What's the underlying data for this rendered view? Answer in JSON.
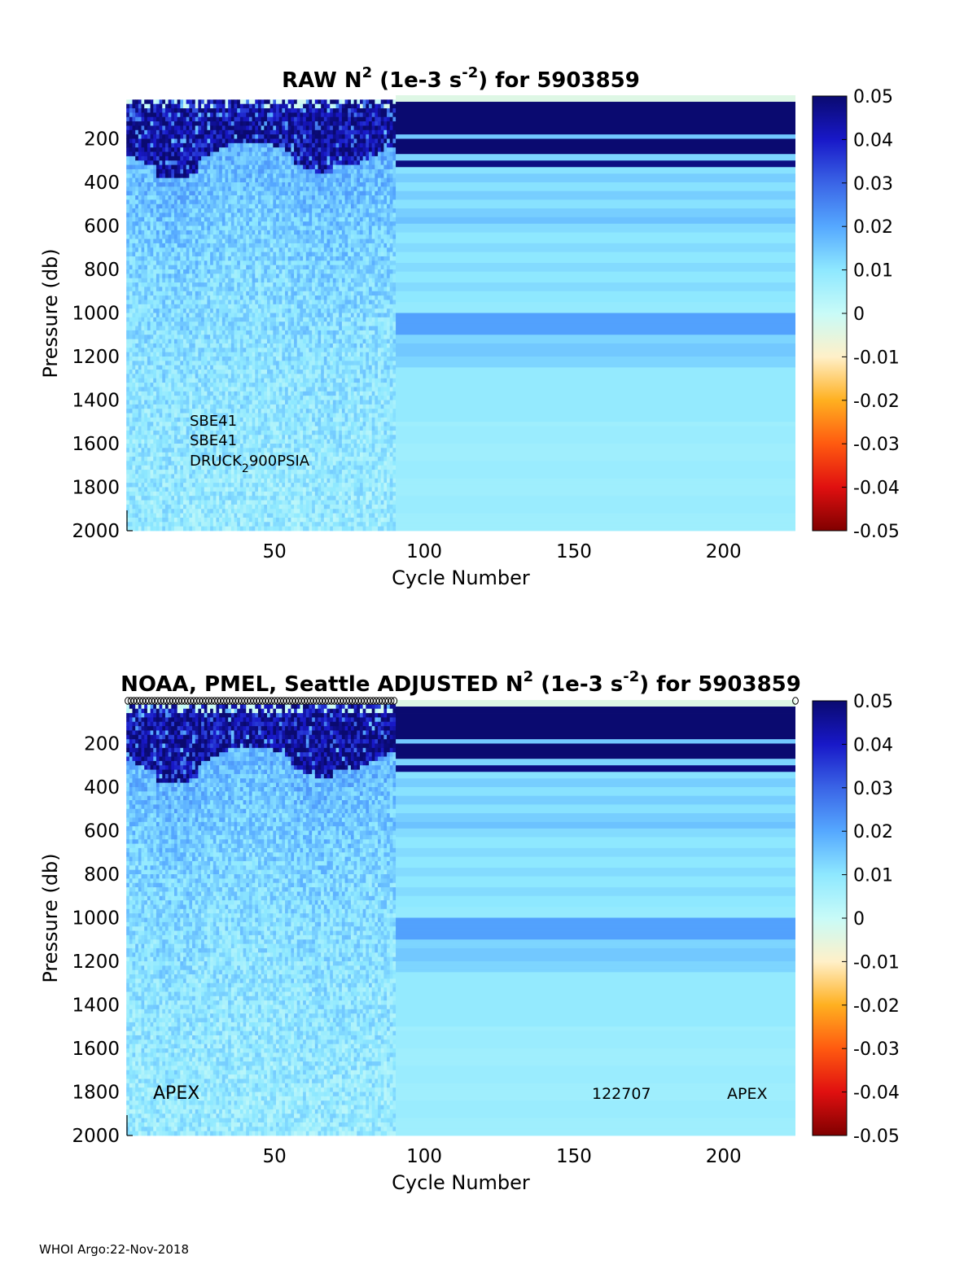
{
  "footer": "WHOI Argo:22-Nov-2018",
  "colorbar": {
    "ticks": [
      "0.05",
      "0.04",
      "0.03",
      "0.02",
      "0.01",
      "0",
      "-0.01",
      "-0.02",
      "-0.03",
      "-0.04",
      "-0.05"
    ],
    "stops": [
      "#0a0a70",
      "#1818c8",
      "#3a64e6",
      "#55a8ff",
      "#8ee8ff",
      "#c8fbf8",
      "#fff0c8",
      "#ffb020",
      "#ff5a10",
      "#e01010",
      "#800000"
    ]
  },
  "chart_data": [
    {
      "type": "heatmap",
      "name": "raw",
      "title_main": "RAW N",
      "title_sup1": "2",
      "title_unit": " (1e-3 s",
      "title_sup2": "-2",
      "title_end": ") for 5903859",
      "xlabel": "Cycle Number",
      "ylabel": "Pressure (db)",
      "x_ticks": [
        50,
        100,
        150,
        200
      ],
      "y_ticks": [
        200,
        400,
        600,
        800,
        1000,
        1200,
        1400,
        1600,
        1800,
        2000
      ],
      "xlim": [
        1,
        224
      ],
      "ylim": [
        0,
        2000
      ],
      "clim": [
        -0.05,
        0.05
      ],
      "annotations": [
        "SBE41",
        "SBE41",
        "DRUCK",
        "2",
        "900PSIA"
      ]
    },
    {
      "type": "heatmap",
      "name": "adjusted",
      "title_main": "NOAA, PMEL, Seattle  ADJUSTED N",
      "title_sup1": "2",
      "title_unit": " (1e-3 s",
      "title_sup2": "-2",
      "title_end": ") for 5903859",
      "xlabel": "Cycle Number",
      "ylabel": "Pressure (db)",
      "x_ticks": [
        50,
        100,
        150,
        200
      ],
      "y_ticks": [
        200,
        400,
        600,
        800,
        1000,
        1200,
        1400,
        1600,
        1800,
        2000
      ],
      "xlim": [
        1,
        224
      ],
      "ylim": [
        0,
        2000
      ],
      "clim": [
        -0.05,
        0.05
      ],
      "annotations": [
        "APEX",
        "122707",
        "APEX"
      ]
    }
  ]
}
